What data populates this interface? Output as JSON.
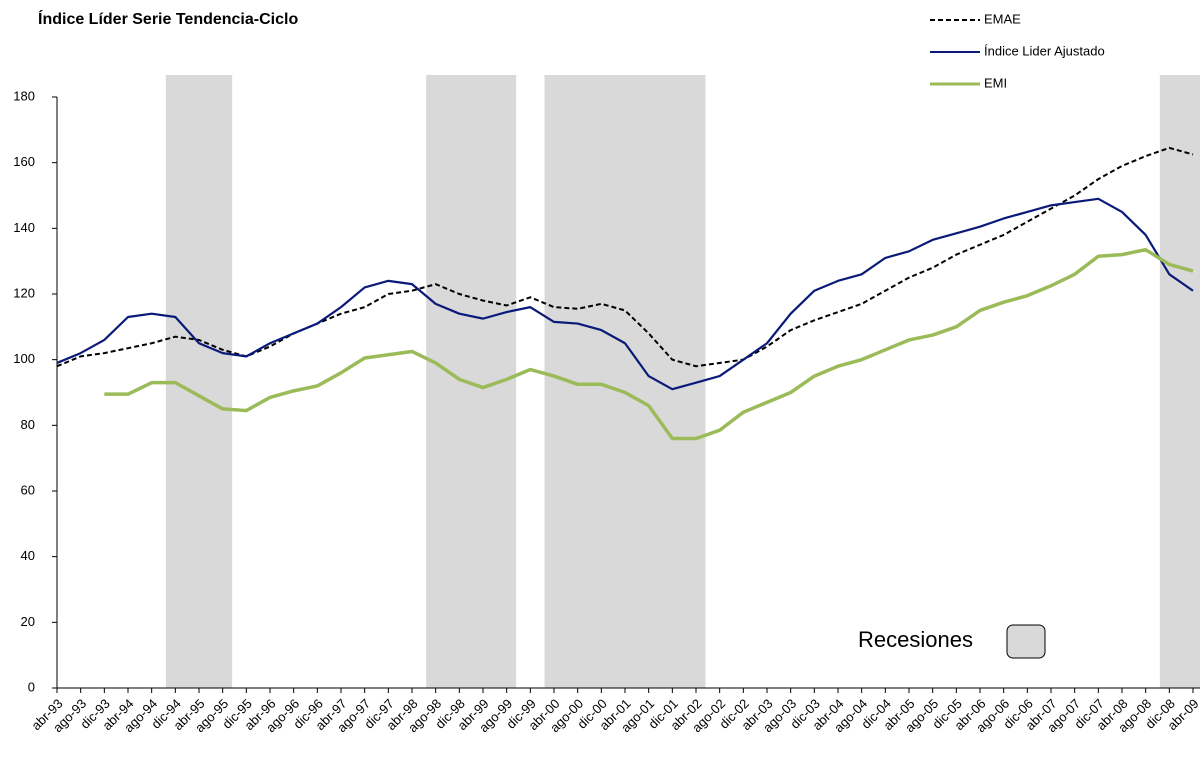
{
  "chart_data": {
    "type": "line",
    "title": "Índice Líder Serie Tendencia-Ciclo",
    "categories": [
      "abr-93",
      "ago-93",
      "dic-93",
      "abr-94",
      "ago-94",
      "dic-94",
      "abr-95",
      "ago-95",
      "dic-95",
      "abr-96",
      "ago-96",
      "dic-96",
      "abr-97",
      "ago-97",
      "dic-97",
      "abr-98",
      "ago-98",
      "dic-98",
      "abr-99",
      "ago-99",
      "dic-99",
      "abr-00",
      "ago-00",
      "dic-00",
      "abr-01",
      "ago-01",
      "dic-01",
      "abr-02",
      "ago-02",
      "dic-02",
      "abr-03",
      "ago-03",
      "dic-03",
      "abr-04",
      "ago-04",
      "dic-04",
      "abr-05",
      "ago-05",
      "dic-05",
      "abr-06",
      "ago-06",
      "dic-06",
      "abr-07",
      "ago-07",
      "dic-07",
      "abr-08",
      "ago-08",
      "dic-08",
      "abr-09"
    ],
    "series": [
      {
        "name": "EMAE",
        "color": "#000000",
        "dash": true,
        "values": [
          98,
          101,
          102,
          103.5,
          105,
          107,
          106,
          103,
          101,
          104,
          108,
          111,
          114,
          116,
          120,
          121,
          123,
          120,
          118,
          116.5,
          119,
          116,
          115.5,
          117,
          115,
          108,
          100,
          98,
          99,
          100,
          104,
          109,
          112,
          114.5,
          117,
          121,
          125,
          128,
          132,
          135,
          138,
          142,
          146,
          150,
          155,
          159,
          162,
          164.5,
          162.5
        ]
      },
      {
        "name": "Índice Lider Ajustado",
        "color": "#0a1a78",
        "dash": false,
        "values": [
          99,
          102,
          106,
          113,
          114,
          113,
          105,
          102,
          101,
          105,
          108,
          111,
          116,
          122,
          124,
          123,
          117,
          114,
          112.5,
          114.5,
          116,
          111.5,
          111,
          109,
          105,
          95,
          91,
          93,
          95,
          100,
          105,
          114,
          121,
          124,
          126,
          131,
          133,
          136.5,
          138.5,
          140.5,
          143,
          145,
          147,
          148,
          149,
          145,
          138,
          126,
          121
        ]
      },
      {
        "name": "EMI",
        "color": "#9bbb59",
        "dash": false,
        "values": [
          null,
          null,
          89.5,
          89.5,
          93,
          93,
          89,
          85,
          84.5,
          88.5,
          90.5,
          92,
          96,
          100.5,
          101.5,
          102.5,
          99,
          94,
          91.5,
          94,
          97,
          95,
          92.5,
          92.5,
          90,
          86,
          76,
          76,
          78.5,
          84,
          87,
          90,
          95,
          98,
          100,
          103,
          106,
          107.5,
          110,
          115,
          117.5,
          119.5,
          122.5,
          126,
          131.5,
          132,
          133.5,
          129,
          127
        ]
      }
    ],
    "recessions": [
      {
        "start": "dic-94",
        "end": "ago-95"
      },
      {
        "start": "ago-98",
        "end": "ago-99"
      },
      {
        "start": "abr-00",
        "end": "abr-02"
      },
      {
        "start": "dic-08",
        "end": "abr-09"
      }
    ],
    "recession_label": "Recesiones",
    "recession_color": "#d9d9d9",
    "ylim": [
      0,
      180
    ],
    "yticks": [
      0,
      20,
      40,
      60,
      80,
      100,
      120,
      140,
      160,
      180
    ],
    "grid": false
  }
}
